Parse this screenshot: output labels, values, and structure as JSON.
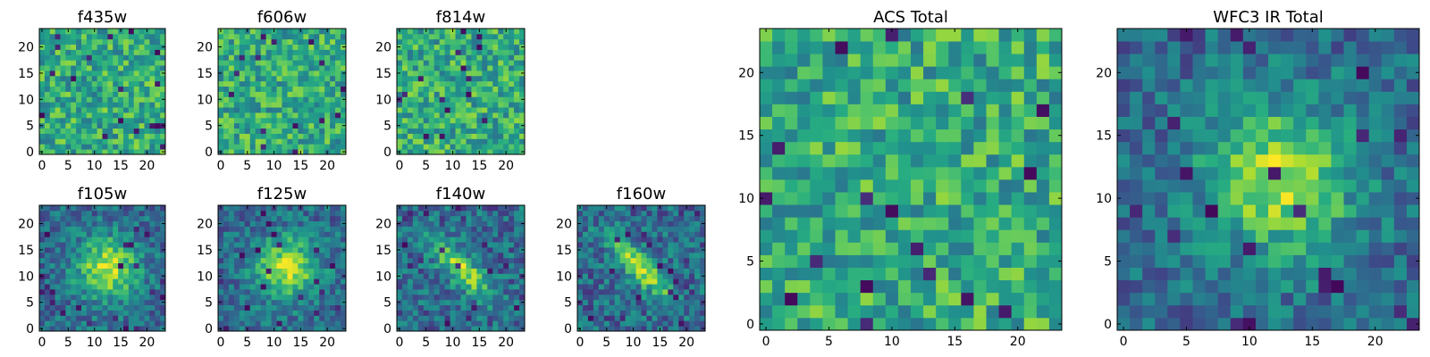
{
  "chart_data": [
    {
      "type": "heatmap",
      "title": "f435w",
      "grid": [
        24,
        24
      ],
      "xticks": [
        "0",
        "5",
        "10",
        "15",
        "20"
      ],
      "yticks": [
        "0",
        "5",
        "10",
        "15",
        "20"
      ],
      "xlim": [
        0,
        24
      ],
      "ylim": [
        0,
        24
      ],
      "colormap": "viridis",
      "value_range": [
        0,
        1
      ],
      "feature": "noise"
    },
    {
      "type": "heatmap",
      "title": "f606w",
      "grid": [
        24,
        24
      ],
      "xticks": [
        "0",
        "5",
        "10",
        "15",
        "20"
      ],
      "yticks": [
        "0",
        "5",
        "10",
        "15",
        "20"
      ],
      "xlim": [
        0,
        24
      ],
      "ylim": [
        0,
        24
      ],
      "colormap": "viridis",
      "value_range": [
        0,
        1
      ],
      "feature": "noise"
    },
    {
      "type": "heatmap",
      "title": "f814w",
      "grid": [
        24,
        24
      ],
      "xticks": [
        "0",
        "5",
        "10",
        "15",
        "20"
      ],
      "yticks": [
        "0",
        "5",
        "10",
        "15",
        "20"
      ],
      "xlim": [
        0,
        24
      ],
      "ylim": [
        0,
        24
      ],
      "colormap": "viridis",
      "value_range": [
        0,
        1
      ],
      "feature": "noise"
    },
    {
      "type": "heatmap",
      "title": "f105w",
      "grid": [
        24,
        24
      ],
      "xticks": [
        "0",
        "5",
        "10",
        "15",
        "20"
      ],
      "yticks": [
        "0",
        "5",
        "10",
        "15",
        "20"
      ],
      "xlim": [
        0,
        24
      ],
      "ylim": [
        0,
        24
      ],
      "colormap": "viridis",
      "value_range": [
        0,
        1
      ],
      "feature": "central-blob"
    },
    {
      "type": "heatmap",
      "title": "f125w",
      "grid": [
        24,
        24
      ],
      "xticks": [
        "0",
        "5",
        "10",
        "15",
        "20"
      ],
      "yticks": [
        "0",
        "5",
        "10",
        "15",
        "20"
      ],
      "xlim": [
        0,
        24
      ],
      "ylim": [
        0,
        24
      ],
      "colormap": "viridis",
      "value_range": [
        0,
        1
      ],
      "feature": "central-blob"
    },
    {
      "type": "heatmap",
      "title": "f140w",
      "grid": [
        24,
        24
      ],
      "xticks": [
        "0",
        "5",
        "10",
        "15",
        "20"
      ],
      "yticks": [
        "0",
        "5",
        "10",
        "15",
        "20"
      ],
      "xlim": [
        0,
        24
      ],
      "ylim": [
        0,
        24
      ],
      "colormap": "viridis",
      "value_range": [
        0,
        1
      ],
      "feature": "diagonal-streak"
    },
    {
      "type": "heatmap",
      "title": "f160w",
      "grid": [
        24,
        24
      ],
      "xticks": [
        "0",
        "5",
        "10",
        "15",
        "20"
      ],
      "yticks": [
        "0",
        "5",
        "10",
        "15",
        "20"
      ],
      "xlim": [
        0,
        24
      ],
      "ylim": [
        0,
        24
      ],
      "colormap": "viridis",
      "value_range": [
        0,
        1
      ],
      "feature": "diagonal-streak"
    },
    {
      "type": "heatmap",
      "title": "ACS Total",
      "grid": [
        24,
        24
      ],
      "xticks": [
        "0",
        "5",
        "10",
        "15",
        "20"
      ],
      "yticks": [
        "0",
        "5",
        "10",
        "15",
        "20"
      ],
      "xlim": [
        0,
        24
      ],
      "ylim": [
        0,
        24
      ],
      "colormap": "viridis",
      "value_range": [
        0,
        1
      ],
      "feature": "noise"
    },
    {
      "type": "heatmap",
      "title": "WFC3 IR Total",
      "grid": [
        24,
        24
      ],
      "xticks": [
        "0",
        "5",
        "10",
        "15",
        "20"
      ],
      "yticks": [
        "0",
        "5",
        "10",
        "15",
        "20"
      ],
      "xlim": [
        0,
        24
      ],
      "ylim": [
        0,
        24
      ],
      "colormap": "viridis",
      "value_range": [
        0,
        1
      ],
      "feature": "central-blob"
    }
  ]
}
